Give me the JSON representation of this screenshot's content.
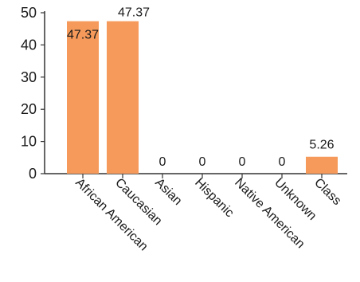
{
  "chart_data": {
    "type": "bar",
    "categories": [
      "African American",
      "Caucasian",
      "Asian",
      "Hispanic",
      "Native American",
      "Unknown",
      "Class"
    ],
    "values": [
      47.37,
      47.37,
      0,
      0,
      0,
      0,
      5.26
    ],
    "data_labels": [
      "47.37",
      "47.37",
      "0",
      "0",
      "0",
      "0",
      "5.26"
    ],
    "ylim": [
      0,
      50
    ],
    "yticks": [
      0,
      10,
      20,
      30,
      40,
      50
    ],
    "title": "",
    "xlabel": "",
    "ylabel": "",
    "grid": false,
    "legend": "none",
    "bar_color": "#f59a5a"
  }
}
